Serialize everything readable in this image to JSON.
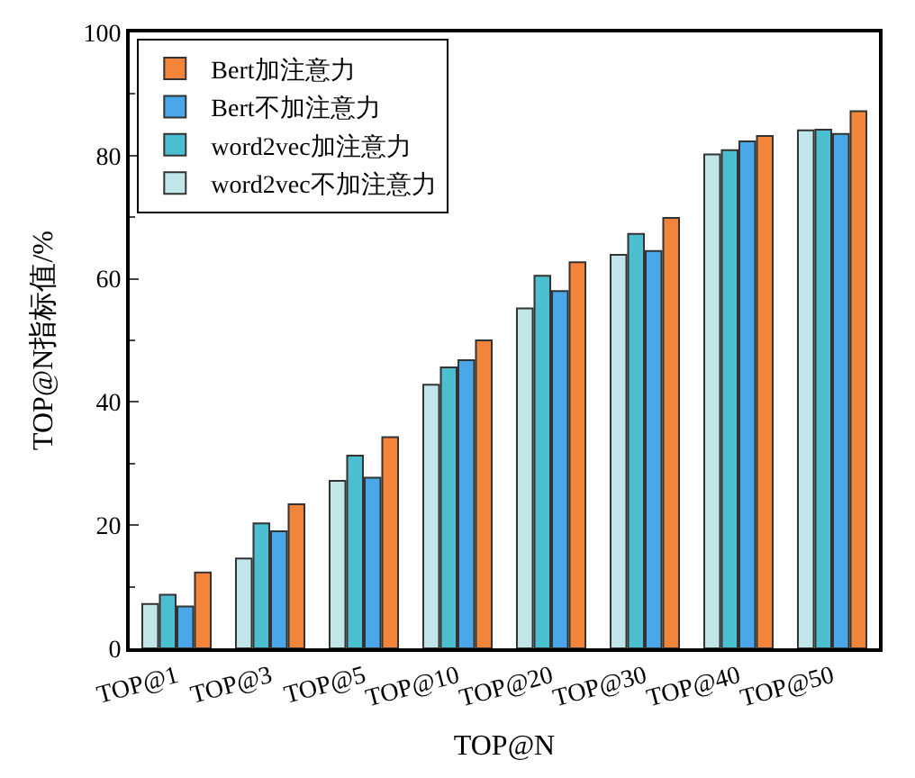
{
  "chart_data": {
    "type": "bar",
    "xlabel": "TOP@N",
    "ylabel": "TOP@N指标值/%",
    "categories": [
      "TOP@1",
      "TOP@3",
      "TOP@5",
      "TOP@10",
      "TOP@20",
      "TOP@30",
      "TOP@40",
      "TOP@50"
    ],
    "series": [
      {
        "name": "word2vec不加注意力",
        "color": "#c0e6ea",
        "values": [
          7.2,
          14.6,
          27.2,
          42.8,
          55.2,
          63.9,
          80.2,
          84.1
        ]
      },
      {
        "name": "word2vec加注意力",
        "color": "#4bbfcf",
        "values": [
          8.7,
          20.3,
          31.3,
          45.6,
          60.5,
          67.3,
          80.9,
          84.2
        ]
      },
      {
        "name": "Bert不加注意力",
        "color": "#4aa8e8",
        "values": [
          6.8,
          19,
          27.7,
          46.8,
          58,
          64.5,
          82.3,
          83.5
        ]
      },
      {
        "name": "Bert加注意力",
        "color": "#f4843a",
        "values": [
          12.3,
          23.4,
          34.3,
          50,
          62.7,
          69.9,
          83.2,
          87.2
        ]
      }
    ],
    "ylim": [
      0,
      100
    ],
    "yticks": [
      0,
      20,
      40,
      60,
      80,
      100
    ],
    "grid": false,
    "legend": "top left"
  }
}
